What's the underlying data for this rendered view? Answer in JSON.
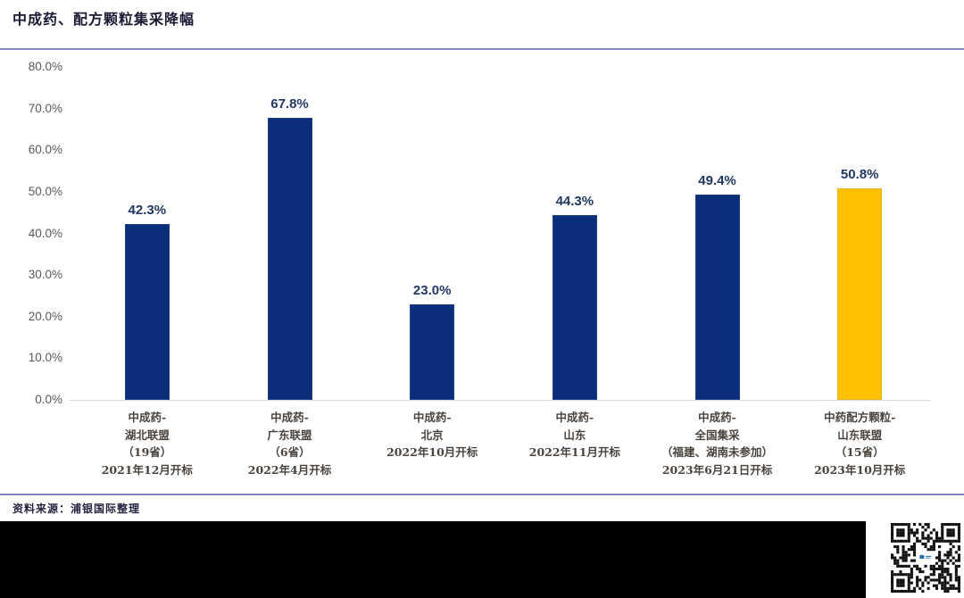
{
  "header": {
    "title": "中成药、配方颗粒集采降幅"
  },
  "footer": {
    "source": "资料来源：浦银国际整理"
  },
  "qrcode": {
    "name": "qr-code",
    "logo_text": "浦银国际"
  },
  "colors": {
    "bar_navy": "#0b2e7b",
    "bar_gold": "#ffc000",
    "bar_border": "#7d86bb",
    "divider": "#8487c0",
    "axis_line": "#d9d9d9",
    "value_label": "#203864",
    "tick_label": "#595959",
    "category_label": "#4a423c",
    "black_bar": "#000000",
    "qr_dark": "#111111",
    "qr_logo_blue": "#2e6fb7"
  },
  "chart_data": {
    "type": "bar",
    "title": "中成药、配方颗粒集采降幅",
    "xlabel": "",
    "ylabel": "",
    "ylim": [
      0,
      80
    ],
    "grid": false,
    "legend": null,
    "categories": [
      [
        "中成药-",
        "湖北联盟",
        "（19省）",
        "2021年12月开标"
      ],
      [
        "中成药-",
        "广东联盟",
        "（6省）",
        "2022年4月开标"
      ],
      [
        "中成药-",
        "北京",
        "2022年10月开标"
      ],
      [
        "中成药-",
        "山东",
        "2022年11月开标"
      ],
      [
        "中成药-",
        "全国集采",
        "（福建、湖南未参加）",
        "2023年6月21日开标"
      ],
      [
        "中药配方颗粒-",
        "山东联盟",
        "（15省）",
        "2023年10月开标"
      ]
    ],
    "values": [
      42.3,
      67.8,
      23.0,
      44.3,
      49.4,
      50.8
    ],
    "data_labels": [
      "42.3%",
      "67.8%",
      "23.0%",
      "44.3%",
      "49.4%",
      "50.8%"
    ],
    "bar_color_keys": [
      "bar_navy",
      "bar_navy",
      "bar_navy",
      "bar_navy",
      "bar_navy",
      "bar_gold"
    ],
    "ytick_labels": [
      "80.0%",
      "70.0%",
      "60.0%",
      "50.0%",
      "40.0%",
      "30.0%",
      "20.0%",
      "10.0%",
      "0.0%"
    ],
    "ytick_values": [
      80,
      70,
      60,
      50,
      40,
      30,
      20,
      10,
      0
    ]
  }
}
